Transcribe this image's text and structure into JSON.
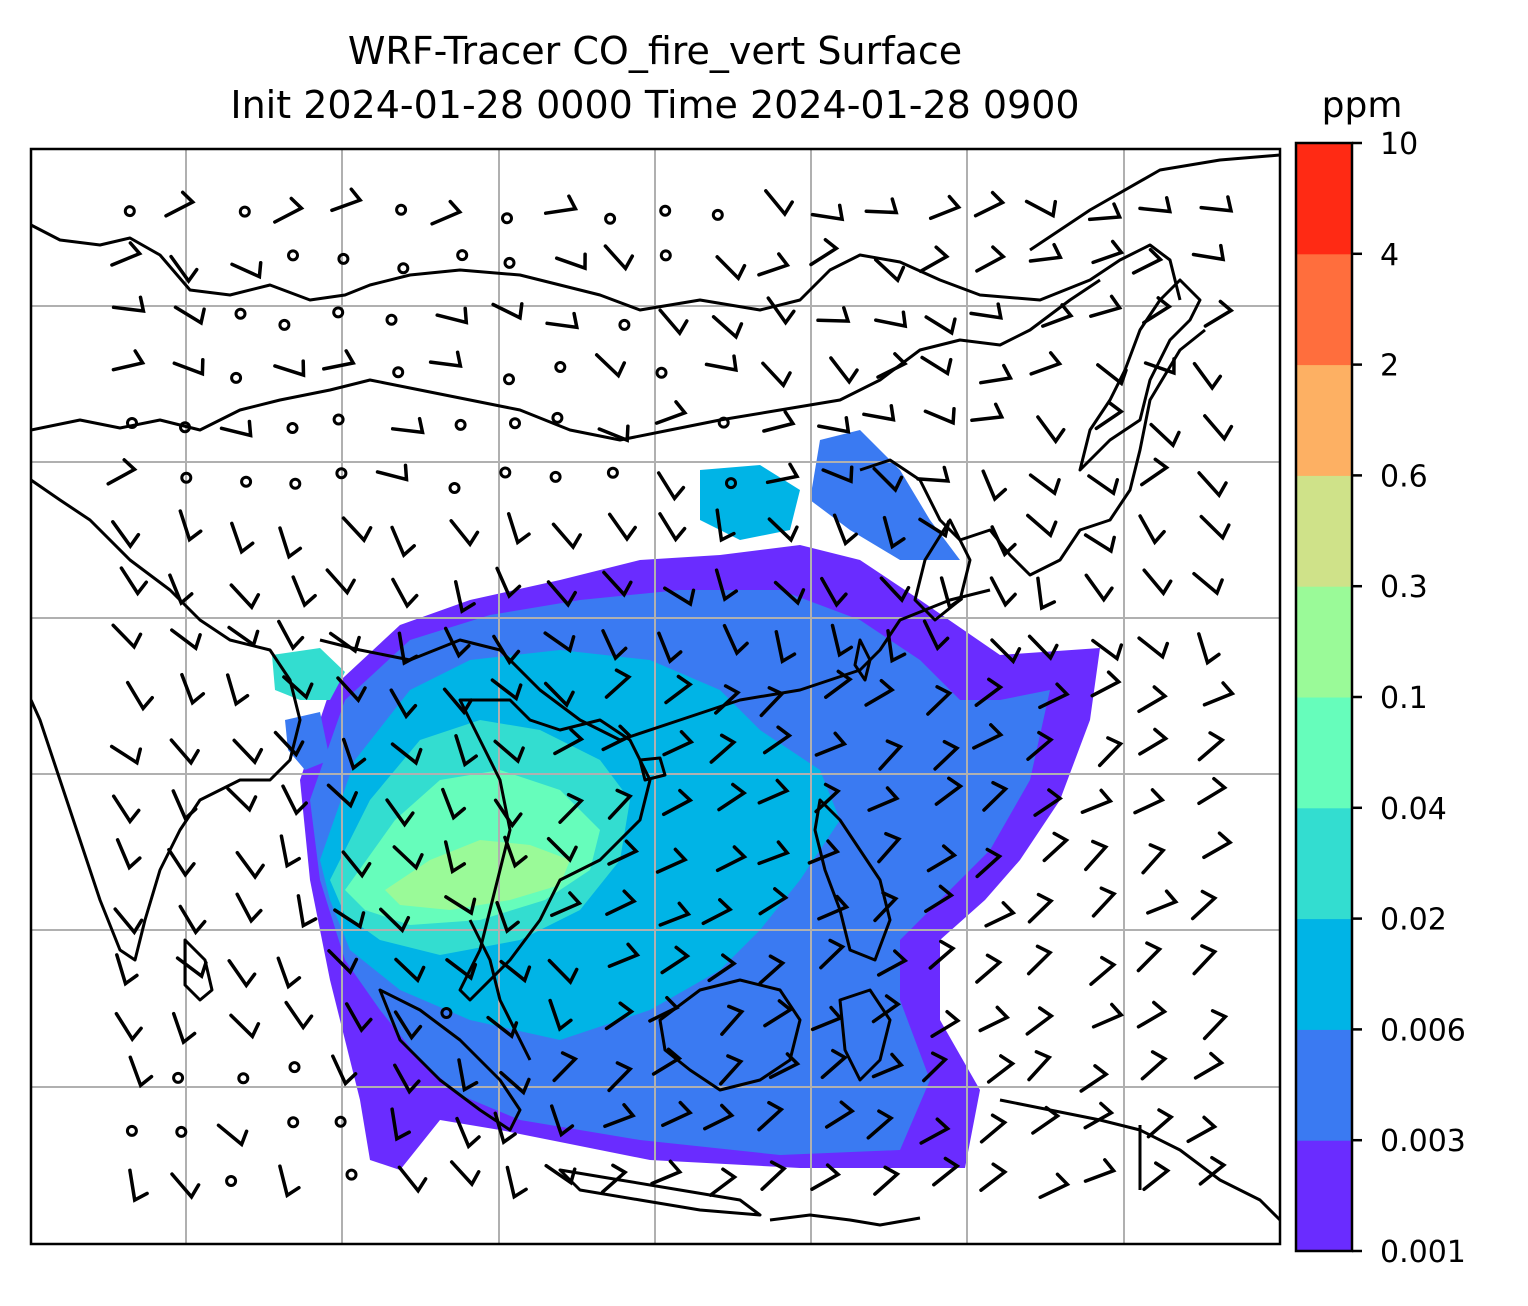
{
  "title": {
    "line1": "WRF-Tracer CO_fire_vert Surface",
    "line2": "Init 2024-01-28 0000 Time 2024-01-28 0900"
  },
  "colorbar": {
    "unit": "ppm",
    "levels": [
      "0.001",
      "0.003",
      "0.006",
      "0.02",
      "0.04",
      "0.1",
      "0.3",
      "0.6",
      "2",
      "4",
      "10"
    ],
    "colors": [
      "#6a2cff",
      "#3a7af2",
      "#00b4e6",
      "#33ddd0",
      "#66fdbb",
      "#9afa98",
      "#cfe289",
      "#fdb063",
      "#ff6e3d",
      "#ff2a14"
    ]
  },
  "map": {
    "grid": true,
    "coastline_color": "#000000",
    "grid_color": "#b0b0b0",
    "field": "CO_fire_vert",
    "level": "Surface"
  }
}
